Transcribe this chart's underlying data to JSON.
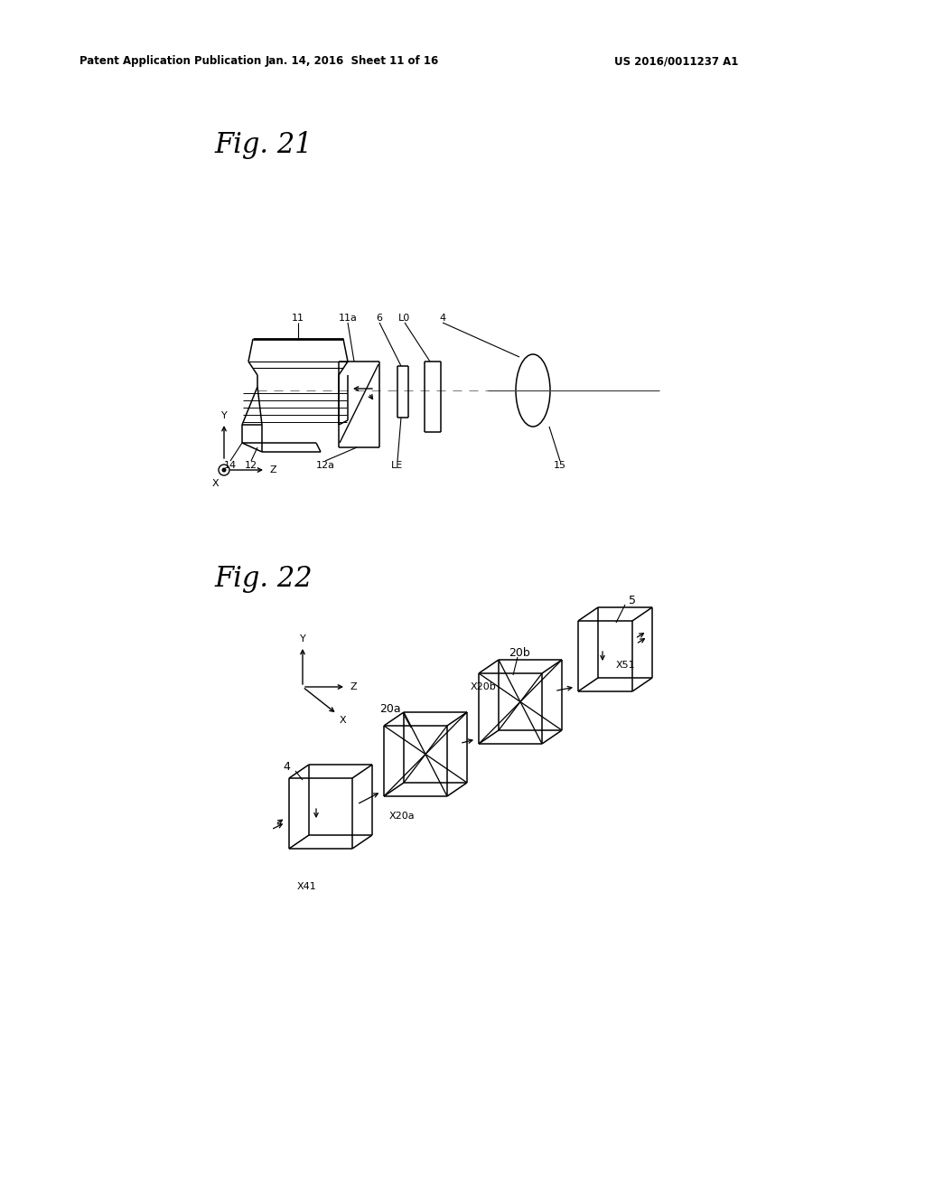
{
  "background_color": "#ffffff",
  "header_left": "Patent Application Publication",
  "header_center": "Jan. 14, 2016  Sheet 11 of 16",
  "header_right": "US 2016/0011237 A1",
  "fig21_label": "Fig. 21",
  "fig22_label": "Fig. 22"
}
